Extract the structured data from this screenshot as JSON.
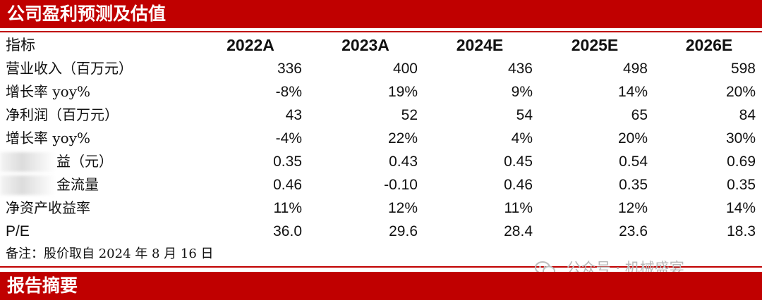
{
  "title": "公司盈利预测及估值",
  "header": {
    "label": "指标",
    "years": [
      "2022A",
      "2023A",
      "2024E",
      "2025E",
      "2026E"
    ]
  },
  "rows": [
    {
      "label": "营业收入（百万元）",
      "values": [
        "336",
        "400",
        "436",
        "498",
        "598"
      ]
    },
    {
      "label": "增长率 yoy%",
      "values": [
        "-8%",
        "19%",
        "9%",
        "14%",
        "20%"
      ]
    },
    {
      "label": "净利润（百万元）",
      "values": [
        "43",
        "52",
        "54",
        "65",
        "84"
      ]
    },
    {
      "label": "增长率 yoy%",
      "values": [
        "-4%",
        "22%",
        "4%",
        "20%",
        "30%"
      ]
    },
    {
      "label": "益（元）",
      "values": [
        "0.35",
        "0.43",
        "0.45",
        "0.54",
        "0.69"
      ]
    },
    {
      "label": "金流量",
      "values": [
        "0.46",
        "-0.10",
        "0.46",
        "0.35",
        "0.35"
      ]
    },
    {
      "label": "净资产收益率",
      "values": [
        "11%",
        "12%",
        "11%",
        "12%",
        "14%"
      ]
    },
    {
      "label": "P/E",
      "values": [
        "36.0",
        "29.6",
        "28.4",
        "23.6",
        "18.3"
      ]
    }
  ],
  "note": "备注：股价取自 2024 年 8 月 16 日",
  "watermark": "公众号 · 机械盛宴",
  "section_title": "报告摘要",
  "colors": {
    "accent": "#c00000"
  }
}
